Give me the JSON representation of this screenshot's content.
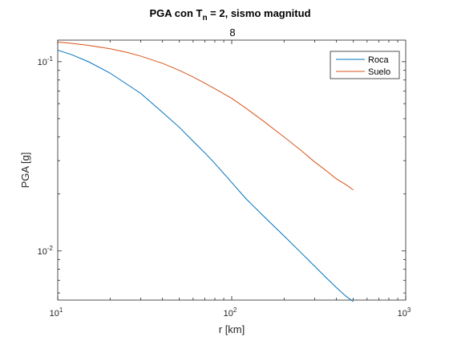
{
  "chart_data": {
    "type": "line",
    "title_main": "PGA con T",
    "title_sub": "n",
    "title_rest": " = 2, sismo magnitud",
    "title_line2": "8",
    "xlabel": "r [km]",
    "ylabel": "PGA [g]",
    "xscale": "log",
    "yscale": "log",
    "xlim": [
      10,
      1000
    ],
    "ylim": [
      0.0055,
      0.13
    ],
    "grid": false,
    "legend_placement": "top-right",
    "xticks": [
      {
        "value": 10,
        "base": "10",
        "exp": "1"
      },
      {
        "value": 100,
        "base": "10",
        "exp": "2"
      },
      {
        "value": 1000,
        "base": "10",
        "exp": "3"
      }
    ],
    "yticks": [
      {
        "value": 0.01,
        "base": "10",
        "exp": "-2"
      },
      {
        "value": 0.1,
        "base": "10",
        "exp": "-1"
      }
    ],
    "series": [
      {
        "name": "Roca",
        "color": "#0072BD",
        "x": [
          10,
          12,
          15,
          20,
          25,
          30,
          40,
          50,
          60,
          70,
          80,
          100,
          120,
          150,
          200,
          250,
          300,
          350,
          400,
          450,
          500
        ],
        "y": [
          0.115,
          0.109,
          0.1,
          0.087,
          0.076,
          0.068,
          0.054,
          0.045,
          0.038,
          0.033,
          0.029,
          0.023,
          0.019,
          0.0155,
          0.012,
          0.0098,
          0.0083,
          0.0072,
          0.0064,
          0.0058,
          0.0054
        ]
      },
      {
        "name": "Suelo",
        "color": "#D95319",
        "x": [
          10,
          12,
          15,
          20,
          25,
          30,
          40,
          50,
          60,
          70,
          80,
          100,
          120,
          150,
          200,
          250,
          300,
          350,
          400,
          450,
          500
        ],
        "y": [
          0.127,
          0.125,
          0.122,
          0.117,
          0.112,
          0.107,
          0.098,
          0.09,
          0.083,
          0.077,
          0.072,
          0.064,
          0.057,
          0.049,
          0.04,
          0.034,
          0.0295,
          0.0265,
          0.024,
          0.0225,
          0.021
        ]
      }
    ]
  }
}
